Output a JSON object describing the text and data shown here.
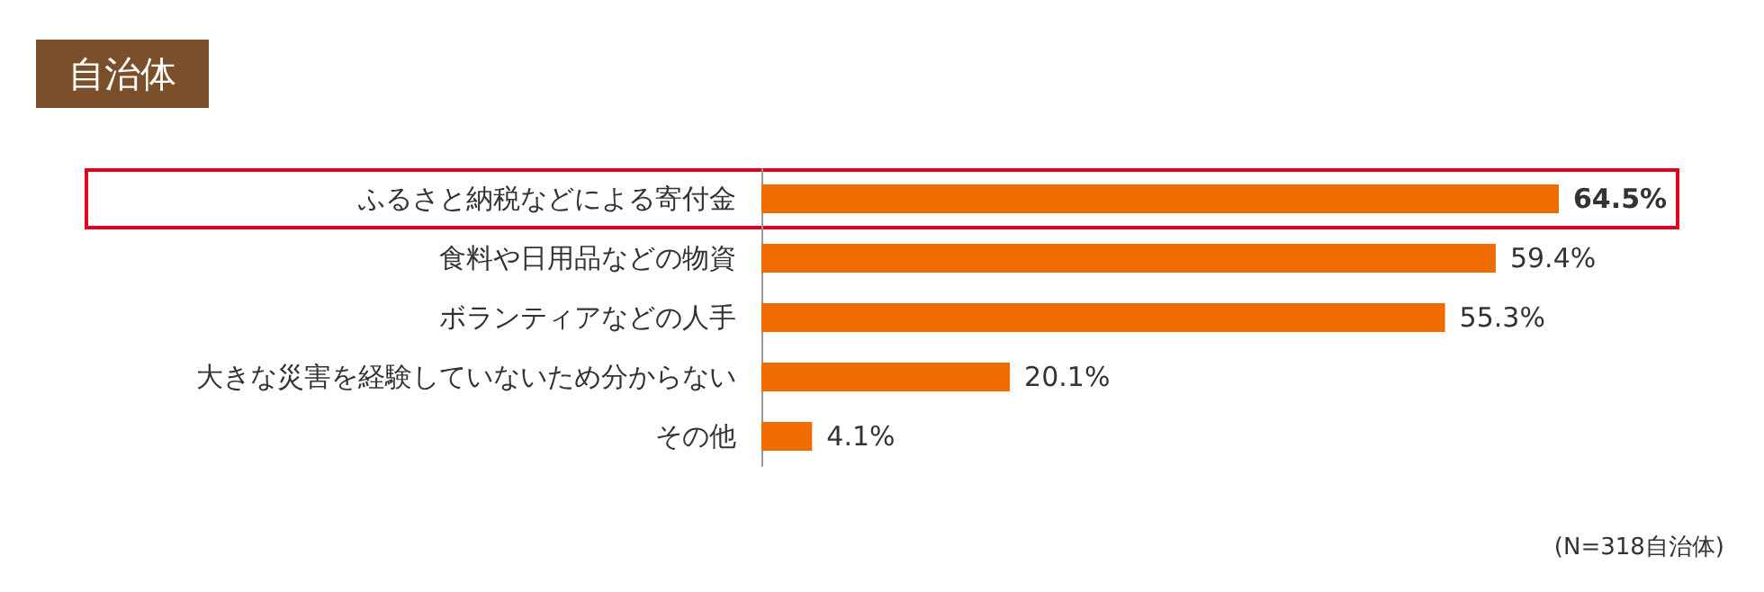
{
  "chart_data": {
    "type": "bar",
    "orientation": "horizontal",
    "title": "自治体",
    "categories": [
      "ふるさと納税などによる寄付金",
      "食料や日用品などの物資",
      "ボランティアなどの人手",
      "大きな災害を経験していないため分からない",
      "その他"
    ],
    "values": [
      64.5,
      59.4,
      55.3,
      20.1,
      4.1
    ],
    "value_labels": [
      "64.5%",
      "59.4%",
      "55.3%",
      "20.1%",
      "4.1%"
    ],
    "color": "#f06b00",
    "annotations": [
      "(N=318自治体)"
    ]
  }
}
